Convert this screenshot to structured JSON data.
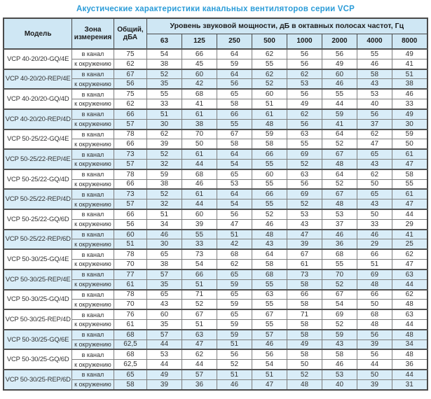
{
  "title": "Акустические характеристики канальных вентиляторов  серии VCP",
  "colors": {
    "accent_blue": "#2b9cd8",
    "header_bg": "#cfe7f4",
    "band_bg": "#d9edf8",
    "border_dark": "#4a4a4a",
    "border_light": "#7f7f7f"
  },
  "table": {
    "headers": {
      "model": "Модель",
      "zone": "Зона измерения",
      "total": "Общий, дБА",
      "spl": "Уровень звуковой мощности, дБ в октавных полосах частот, Гц",
      "frequencies": [
        "63",
        "125",
        "250",
        "500",
        "1000",
        "2000",
        "4000",
        "8000"
      ]
    },
    "groups": [
      {
        "model": "VCP 40-20/20-GQ/4E",
        "shaded": false,
        "rows": [
          {
            "zone": "в канал",
            "total": "75",
            "levels": [
              54,
              66,
              64,
              62,
              56,
              56,
              55,
              49
            ]
          },
          {
            "zone": "к окружению",
            "total": "62",
            "levels": [
              38,
              45,
              59,
              55,
              56,
              49,
              46,
              41
            ]
          }
        ]
      },
      {
        "model": "VCP 40-20/20-REP/4E",
        "shaded": true,
        "rows": [
          {
            "zone": "в канал",
            "total": "67",
            "levels": [
              52,
              60,
              64,
              62,
              62,
              60,
              58,
              51
            ]
          },
          {
            "zone": "к окружению",
            "total": "56",
            "levels": [
              35,
              42,
              56,
              52,
              53,
              46,
              43,
              38
            ]
          }
        ]
      },
      {
        "model": "VCP 40-20/20-GQ/4D",
        "shaded": false,
        "rows": [
          {
            "zone": "в канал",
            "total": "75",
            "levels": [
              55,
              68,
              65,
              60,
              56,
              55,
              53,
              46
            ]
          },
          {
            "zone": "к окружению",
            "total": "62",
            "levels": [
              33,
              41,
              58,
              51,
              49,
              44,
              40,
              33
            ]
          }
        ]
      },
      {
        "model": "VCP 40-20/20-REP/4D",
        "shaded": true,
        "rows": [
          {
            "zone": "в канал",
            "total": "66",
            "levels": [
              51,
              61,
              66,
              61,
              62,
              59,
              56,
              49
            ]
          },
          {
            "zone": "к окружению",
            "total": "57",
            "levels": [
              30,
              38,
              55,
              48,
              56,
              41,
              37,
              30
            ]
          }
        ]
      },
      {
        "model": "VCP 50-25/22-GQ/4E",
        "shaded": false,
        "rows": [
          {
            "zone": "в канал",
            "total": "78",
            "levels": [
              62,
              70,
              67,
              59,
              63,
              64,
              62,
              59
            ]
          },
          {
            "zone": "к окружению",
            "total": "66",
            "levels": [
              39,
              50,
              58,
              58,
              55,
              52,
              47,
              50
            ]
          }
        ]
      },
      {
        "model": "VCP 50-25/22-REP/4E",
        "shaded": true,
        "rows": [
          {
            "zone": "в канал",
            "total": "73",
            "levels": [
              52,
              61,
              64,
              66,
              69,
              67,
              65,
              61
            ]
          },
          {
            "zone": "к окружению",
            "total": "57",
            "levels": [
              32,
              44,
              54,
              55,
              52,
              48,
              43,
              47
            ]
          }
        ]
      },
      {
        "model": "VCP 50-25/22-GQ/4D",
        "shaded": false,
        "rows": [
          {
            "zone": "в канал",
            "total": "78",
            "levels": [
              59,
              68,
              65,
              60,
              63,
              64,
              62,
              58
            ]
          },
          {
            "zone": "к окружению",
            "total": "66",
            "levels": [
              38,
              46,
              53,
              55,
              56,
              52,
              50,
              55
            ]
          }
        ]
      },
      {
        "model": "VCP 50-25/22-REP/4D",
        "shaded": true,
        "rows": [
          {
            "zone": "в канал",
            "total": "73",
            "levels": [
              52,
              61,
              64,
              66,
              69,
              67,
              65,
              61
            ]
          },
          {
            "zone": "к окружению",
            "total": "57",
            "levels": [
              32,
              44,
              54,
              55,
              52,
              48,
              43,
              47
            ]
          }
        ]
      },
      {
        "model": "VCP 50-25/22-GQ/6D",
        "shaded": false,
        "rows": [
          {
            "zone": "в канал",
            "total": "66",
            "levels": [
              51,
              60,
              56,
              52,
              53,
              53,
              50,
              44
            ]
          },
          {
            "zone": "к окружению",
            "total": "56",
            "levels": [
              34,
              39,
              47,
              46,
              43,
              37,
              33,
              29
            ]
          }
        ]
      },
      {
        "model": "VCP 50-25/22-REP/6D",
        "shaded": true,
        "rows": [
          {
            "zone": "в канал",
            "total": "60",
            "levels": [
              46,
              55,
              51,
              48,
              47,
              46,
              46,
              41
            ]
          },
          {
            "zone": "к окружению",
            "total": "51",
            "levels": [
              30,
              33,
              42,
              43,
              39,
              36,
              29,
              25
            ]
          }
        ]
      },
      {
        "model": "VCP 50-30/25-GQ/4E",
        "shaded": false,
        "rows": [
          {
            "zone": "в канал",
            "total": "78",
            "levels": [
              65,
              73,
              68,
              64,
              67,
              68,
              66,
              62
            ]
          },
          {
            "zone": "к окружению",
            "total": "70",
            "levels": [
              38,
              54,
              62,
              58,
              61,
              55,
              51,
              47
            ]
          }
        ]
      },
      {
        "model": "VCP 50-30/25-REP/4E",
        "shaded": true,
        "rows": [
          {
            "zone": "в канал",
            "total": "77",
            "levels": [
              57,
              66,
              65,
              68,
              73,
              70,
              69,
              63
            ]
          },
          {
            "zone": "к окружению",
            "total": "61",
            "levels": [
              35,
              51,
              59,
              55,
              58,
              52,
              48,
              44
            ]
          }
        ]
      },
      {
        "model": "VCP 50-30/25-GQ/4D",
        "shaded": false,
        "rows": [
          {
            "zone": "в канал",
            "total": "78",
            "levels": [
              65,
              71,
              65,
              63,
              66,
              67,
              66,
              62
            ]
          },
          {
            "zone": "к окружению",
            "total": "70",
            "levels": [
              43,
              52,
              59,
              55,
              58,
              54,
              50,
              48
            ]
          }
        ]
      },
      {
        "model": "VCP 50-30/25-REP/4D",
        "shaded": false,
        "rows": [
          {
            "zone": "в канал",
            "total": "76",
            "levels": [
              60,
              67,
              65,
              67,
              71,
              69,
              68,
              63
            ]
          },
          {
            "zone": "к окружению",
            "total": "61",
            "levels": [
              35,
              51,
              59,
              55,
              58,
              52,
              48,
              44
            ]
          }
        ]
      },
      {
        "model": "VCP 50-30/25-GQ/6E",
        "shaded": true,
        "rows": [
          {
            "zone": "в канал",
            "total": "68",
            "levels": [
              57,
              63,
              59,
              57,
              58,
              59,
              56,
              48
            ]
          },
          {
            "zone": "к окружению",
            "total": "62,5",
            "levels": [
              44,
              47,
              51,
              46,
              49,
              43,
              39,
              34
            ]
          }
        ]
      },
      {
        "model": "VCP 50-30/25-GQ/6D",
        "shaded": false,
        "rows": [
          {
            "zone": "в канал",
            "total": "68",
            "levels": [
              53,
              62,
              56,
              56,
              58,
              58,
              56,
              48
            ]
          },
          {
            "zone": "к окружению",
            "total": "62,5",
            "levels": [
              44,
              44,
              52,
              54,
              50,
              46,
              44,
              36
            ]
          }
        ]
      },
      {
        "model": "VCP 50-30/25-REP/6D",
        "shaded": true,
        "rows": [
          {
            "zone": "в канал",
            "total": "65",
            "levels": [
              49,
              57,
              51,
              51,
              52,
              53,
              50,
              44
            ]
          },
          {
            "zone": "к окружению",
            "total": "58",
            "levels": [
              39,
              36,
              46,
              47,
              48,
              40,
              39,
              31
            ]
          }
        ]
      }
    ]
  }
}
